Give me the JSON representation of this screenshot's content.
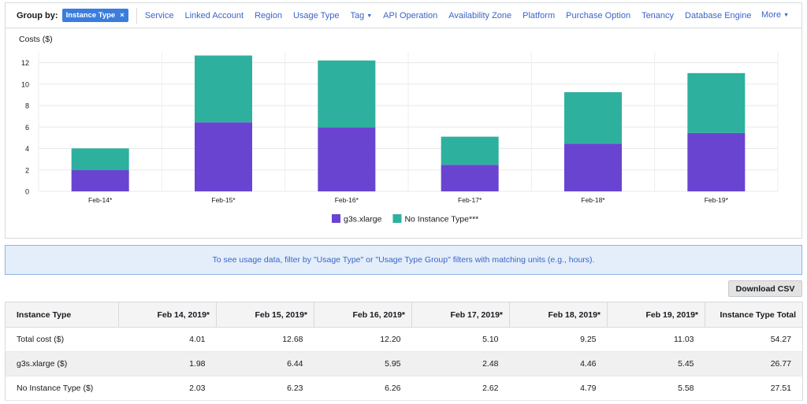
{
  "group_by": {
    "label": "Group by:",
    "selected": "Instance Type",
    "remove_symbol": "×",
    "options": [
      "Service",
      "Linked Account",
      "Region",
      "Usage Type",
      "Tag",
      "API Operation",
      "Availability Zone",
      "Platform",
      "Purchase Option",
      "Tenancy",
      "Database Engine"
    ],
    "dropdown_option": "Tag",
    "more_label": "More",
    "caret": "▼"
  },
  "chart_data": {
    "type": "bar",
    "stacked": true,
    "title": "",
    "ylabel": "Costs ($)",
    "xlabel": "",
    "categories": [
      "Feb-14*",
      "Feb-15*",
      "Feb-16*",
      "Feb-17*",
      "Feb-18*",
      "Feb-19*"
    ],
    "series": [
      {
        "name": "g3s.xlarge",
        "color": "#6944d1",
        "values": [
          1.98,
          6.44,
          5.95,
          2.48,
          4.46,
          5.45
        ]
      },
      {
        "name": "No Instance Type***",
        "color": "#2eb09e",
        "values": [
          2.03,
          6.23,
          6.26,
          2.62,
          4.79,
          5.58
        ]
      }
    ],
    "yticks": [
      0,
      2,
      4,
      6,
      8,
      10,
      12
    ],
    "ylim": [
      0,
      13
    ],
    "grid": true,
    "legend": "bottom-center"
  },
  "banner": {
    "text": "To see usage data, filter by \"Usage Type\" or \"Usage Type Group\" filters with matching units (e.g., hours)."
  },
  "download_label": "Download CSV",
  "table": {
    "headers": [
      "Instance Type",
      "Feb 14, 2019*",
      "Feb 15, 2019*",
      "Feb 16, 2019*",
      "Feb 17, 2019*",
      "Feb 18, 2019*",
      "Feb 19, 2019*",
      "Instance Type Total"
    ],
    "rows": [
      [
        "Total cost ($)",
        "4.01",
        "12.68",
        "12.20",
        "5.10",
        "9.25",
        "11.03",
        "54.27"
      ],
      [
        "g3s.xlarge ($)",
        "1.98",
        "6.44",
        "5.95",
        "2.48",
        "4.46",
        "5.45",
        "26.77"
      ],
      [
        "No Instance Type ($)",
        "2.03",
        "6.23",
        "6.26",
        "2.62",
        "4.79",
        "5.58",
        "27.51"
      ]
    ]
  }
}
